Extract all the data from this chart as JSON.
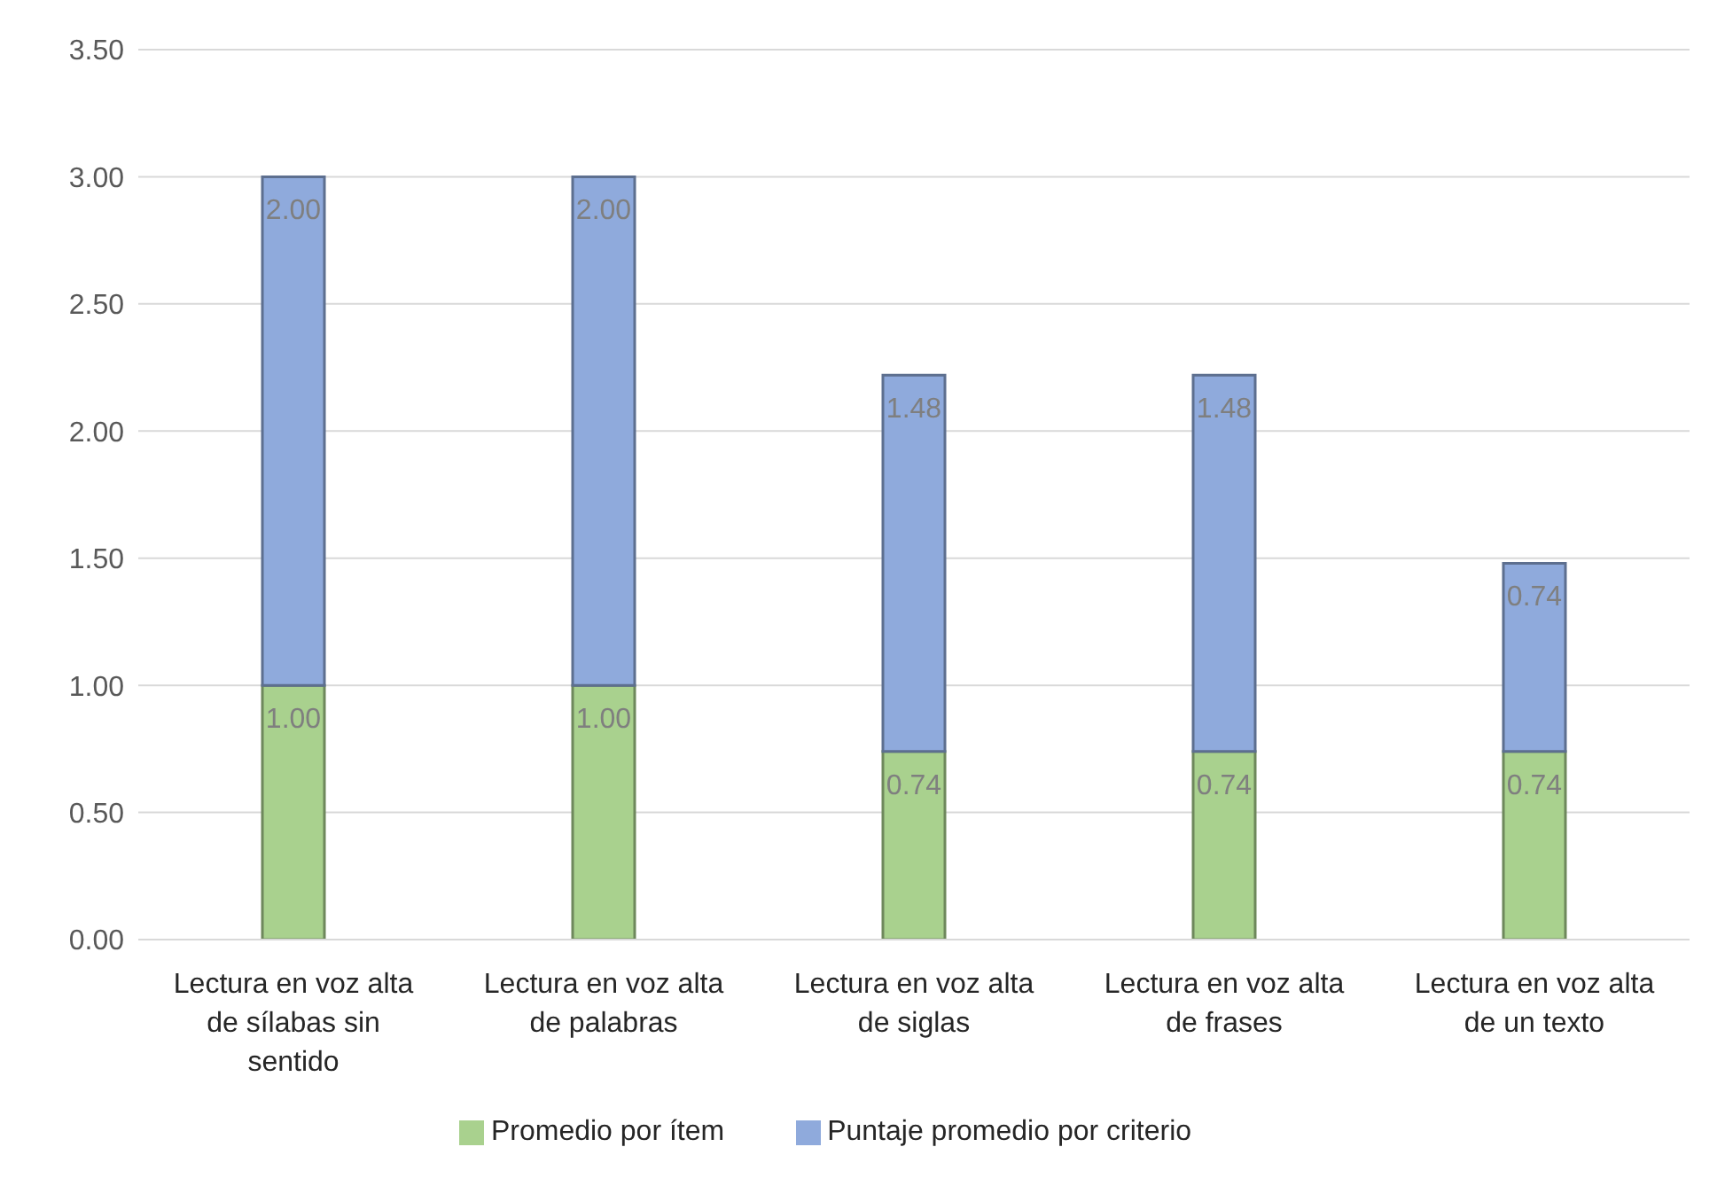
{
  "chart_data": {
    "type": "bar",
    "stacked": true,
    "categories": [
      "Lectura en voz alta de sílabas sin sentido",
      "Lectura en voz alta de palabras",
      "Lectura en voz alta de siglas",
      "Lectura en voz alta de frases",
      "Lectura en voz alta de un texto"
    ],
    "series": [
      {
        "name": "Promedio por ítem",
        "color": "#a9d18e",
        "values": [
          1.0,
          1.0,
          0.74,
          0.74,
          0.74
        ],
        "value_labels": [
          "1.00",
          "1.00",
          "0.74",
          "0.74",
          "0.74"
        ]
      },
      {
        "name": "Puntaje promedio por criterio",
        "color": "#8faadc",
        "values": [
          2.0,
          2.0,
          1.48,
          1.48,
          0.74
        ],
        "value_labels": [
          "2.00",
          "2.00",
          "1.48",
          "1.48",
          "0.74"
        ]
      }
    ],
    "ylim": [
      0,
      3.5
    ],
    "yticks": [
      {
        "value": 0,
        "label": "0.00"
      },
      {
        "value": 0.5,
        "label": "0.50"
      },
      {
        "value": 1,
        "label": "1.00"
      },
      {
        "value": 1.5,
        "label": "1.50"
      },
      {
        "value": 2,
        "label": "2.00"
      },
      {
        "value": 2.5,
        "label": "2.50"
      },
      {
        "value": 3,
        "label": "3.00"
      },
      {
        "value": 3.5,
        "label": "3.50"
      }
    ],
    "grid": "y",
    "legend": "bottom"
  }
}
